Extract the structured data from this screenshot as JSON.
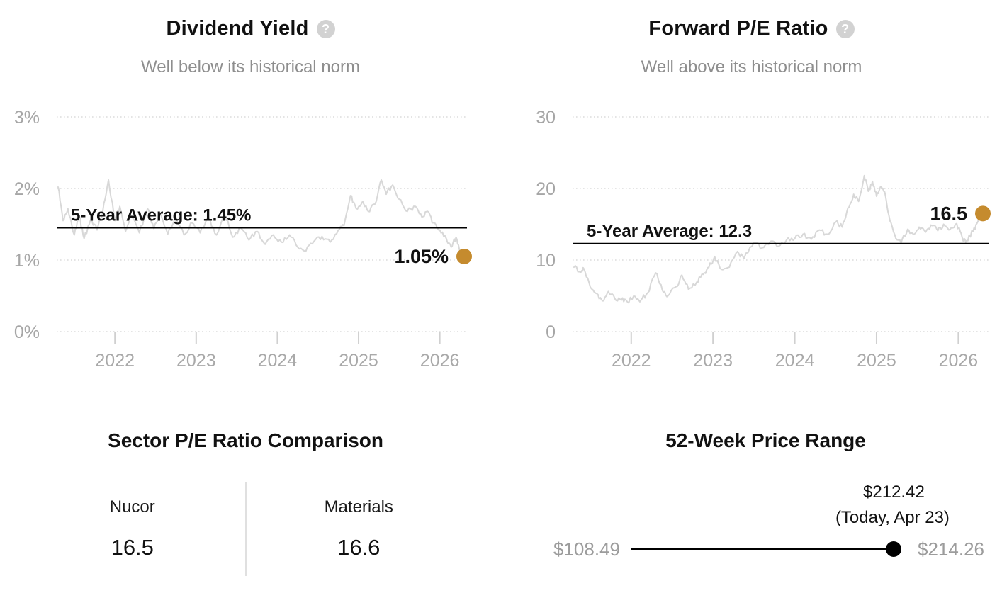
{
  "accent_color": "#c58b2e",
  "series_color": "#d8d8d8",
  "chart_data": [
    {
      "type": "line",
      "title": "Dividend Yield",
      "help_icon": "?",
      "subtitle": "Well below its historical norm",
      "ylabel": "Dividend Yield (%)",
      "ylim": [
        0,
        3
      ],
      "yticks": [
        {
          "label": "3%",
          "value": 3
        },
        {
          "label": "2%",
          "value": 2
        },
        {
          "label": "1%",
          "value": 1
        },
        {
          "label": "0%",
          "value": 0
        }
      ],
      "xlim": [
        2021.3,
        2026.3
      ],
      "xticks": [
        2022,
        2023,
        2024,
        2025,
        2026
      ],
      "grid": "dotted-horizontal",
      "legend": "none",
      "average": {
        "label": "5-Year Average: 1.45%",
        "value": 1.45
      },
      "current": {
        "label": "1.05%",
        "value": 1.05
      },
      "series": [
        [
          2021.3,
          2.02
        ],
        [
          2021.36,
          1.55
        ],
        [
          2021.42,
          1.72
        ],
        [
          2021.5,
          1.35
        ],
        [
          2021.56,
          1.62
        ],
        [
          2021.62,
          1.3
        ],
        [
          2021.7,
          1.56
        ],
        [
          2021.78,
          1.42
        ],
        [
          2021.85,
          1.68
        ],
        [
          2021.92,
          2.12
        ],
        [
          2022.0,
          1.55
        ],
        [
          2022.06,
          1.75
        ],
        [
          2022.13,
          1.4
        ],
        [
          2022.2,
          1.62
        ],
        [
          2022.3,
          1.38
        ],
        [
          2022.4,
          1.72
        ],
        [
          2022.48,
          1.44
        ],
        [
          2022.55,
          1.65
        ],
        [
          2022.65,
          1.36
        ],
        [
          2022.75,
          1.6
        ],
        [
          2022.85,
          1.35
        ],
        [
          2022.95,
          1.52
        ],
        [
          2023.05,
          1.38
        ],
        [
          2023.15,
          1.6
        ],
        [
          2023.25,
          1.35
        ],
        [
          2023.35,
          1.65
        ],
        [
          2023.45,
          1.32
        ],
        [
          2023.55,
          1.45
        ],
        [
          2023.65,
          1.28
        ],
        [
          2023.75,
          1.4
        ],
        [
          2023.85,
          1.22
        ],
        [
          2023.95,
          1.35
        ],
        [
          2024.05,
          1.25
        ],
        [
          2024.15,
          1.35
        ],
        [
          2024.25,
          1.18
        ],
        [
          2024.35,
          1.12
        ],
        [
          2024.45,
          1.26
        ],
        [
          2024.55,
          1.33
        ],
        [
          2024.65,
          1.25
        ],
        [
          2024.75,
          1.42
        ],
        [
          2024.82,
          1.48
        ],
        [
          2024.9,
          1.9
        ],
        [
          2024.97,
          1.72
        ],
        [
          2025.05,
          1.82
        ],
        [
          2025.12,
          1.68
        ],
        [
          2025.2,
          1.78
        ],
        [
          2025.28,
          2.12
        ],
        [
          2025.34,
          1.92
        ],
        [
          2025.42,
          2.05
        ],
        [
          2025.5,
          1.85
        ],
        [
          2025.6,
          1.68
        ],
        [
          2025.7,
          1.75
        ],
        [
          2025.78,
          1.6
        ],
        [
          2025.85,
          1.68
        ],
        [
          2025.92,
          1.52
        ],
        [
          2026.0,
          1.42
        ],
        [
          2026.08,
          1.3
        ],
        [
          2026.14,
          1.18
        ],
        [
          2026.2,
          1.32
        ],
        [
          2026.25,
          1.12
        ],
        [
          2026.3,
          1.05
        ]
      ]
    },
    {
      "type": "line",
      "title": "Forward P/E Ratio",
      "help_icon": "?",
      "subtitle": "Well above its historical norm",
      "ylabel": "Forward P/E",
      "ylim": [
        0,
        30
      ],
      "yticks": [
        {
          "label": "30",
          "value": 30
        },
        {
          "label": "20",
          "value": 20
        },
        {
          "label": "10",
          "value": 10
        },
        {
          "label": "0",
          "value": 0
        }
      ],
      "xlim": [
        2021.3,
        2026.3
      ],
      "xticks": [
        2022,
        2023,
        2024,
        2025,
        2026
      ],
      "grid": "dotted-horizontal",
      "legend": "none",
      "average": {
        "label": "5-Year Average: 12.3",
        "value": 12.3
      },
      "current": {
        "label": "16.5",
        "value": 16.5
      },
      "series": [
        [
          2021.3,
          9.0
        ],
        [
          2021.38,
          8.3
        ],
        [
          2021.42,
          8.8
        ],
        [
          2021.5,
          6.2
        ],
        [
          2021.58,
          5.3
        ],
        [
          2021.65,
          4.3
        ],
        [
          2021.72,
          5.6
        ],
        [
          2021.8,
          4.6
        ],
        [
          2021.88,
          4.4
        ],
        [
          2021.95,
          4.2
        ],
        [
          2022.05,
          4.9
        ],
        [
          2022.12,
          4.4
        ],
        [
          2022.2,
          5.4
        ],
        [
          2022.3,
          8.2
        ],
        [
          2022.38,
          5.8
        ],
        [
          2022.45,
          5.0
        ],
        [
          2022.55,
          6.3
        ],
        [
          2022.62,
          7.9
        ],
        [
          2022.7,
          5.9
        ],
        [
          2022.8,
          6.9
        ],
        [
          2022.88,
          8.0
        ],
        [
          2022.95,
          9.0
        ],
        [
          2023.02,
          10.5
        ],
        [
          2023.1,
          8.7
        ],
        [
          2023.2,
          9.0
        ],
        [
          2023.3,
          11.2
        ],
        [
          2023.38,
          10.2
        ],
        [
          2023.5,
          12.4
        ],
        [
          2023.6,
          11.7
        ],
        [
          2023.7,
          12.6
        ],
        [
          2023.8,
          11.9
        ],
        [
          2023.9,
          12.8
        ],
        [
          2024.0,
          13.0
        ],
        [
          2024.1,
          13.6
        ],
        [
          2024.2,
          12.9
        ],
        [
          2024.3,
          14.2
        ],
        [
          2024.4,
          13.6
        ],
        [
          2024.5,
          15.3
        ],
        [
          2024.58,
          14.6
        ],
        [
          2024.65,
          17.3
        ],
        [
          2024.72,
          19.2
        ],
        [
          2024.78,
          18.2
        ],
        [
          2024.85,
          21.8
        ],
        [
          2024.9,
          19.6
        ],
        [
          2024.95,
          21.0
        ],
        [
          2025.0,
          18.9
        ],
        [
          2025.05,
          20.3
        ],
        [
          2025.1,
          19.5
        ],
        [
          2025.15,
          16.3
        ],
        [
          2025.22,
          13.6
        ],
        [
          2025.3,
          12.4
        ],
        [
          2025.38,
          14.3
        ],
        [
          2025.45,
          13.6
        ],
        [
          2025.52,
          14.6
        ],
        [
          2025.6,
          13.9
        ],
        [
          2025.68,
          14.8
        ],
        [
          2025.75,
          14.1
        ],
        [
          2025.82,
          15.0
        ],
        [
          2025.9,
          14.3
        ],
        [
          2025.98,
          15.1
        ],
        [
          2026.05,
          13.0
        ],
        [
          2026.1,
          12.7
        ],
        [
          2026.18,
          14.0
        ],
        [
          2026.24,
          15.4
        ],
        [
          2026.3,
          16.5
        ]
      ]
    },
    {
      "type": "table",
      "title": "Sector P/E Ratio Comparison",
      "columns": [
        {
          "label": "Nucor",
          "value": "16.5"
        },
        {
          "label": "Materials",
          "value": "16.6"
        }
      ]
    },
    {
      "type": "range",
      "title": "52-Week Price Range",
      "low": {
        "label": "$108.49",
        "value": 108.49
      },
      "high": {
        "label": "$214.26",
        "value": 214.26
      },
      "current": {
        "label": "$212.42",
        "sub_label": "(Today, Apr 23)",
        "value": 212.42
      }
    }
  ]
}
